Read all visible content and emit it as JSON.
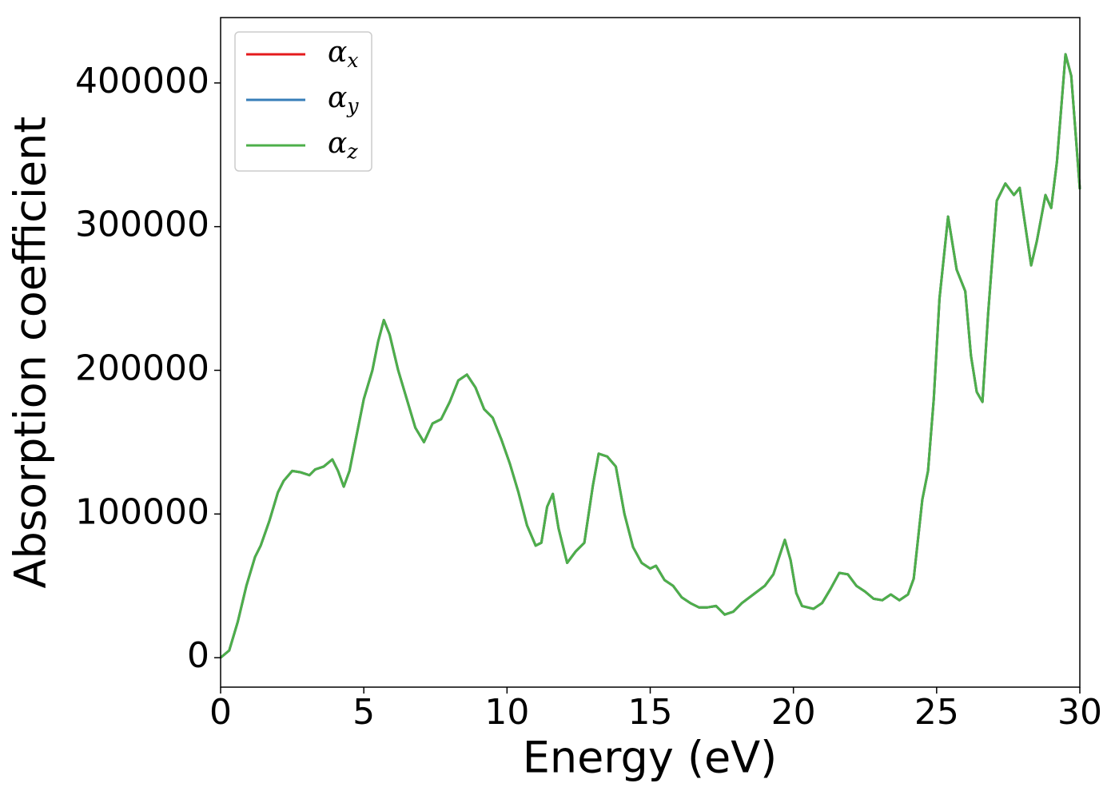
{
  "chart_data": {
    "type": "line",
    "xlabel": "Energy (eV)",
    "ylabel": "Absorption coefficient",
    "x": [
      0,
      0.3,
      0.6,
      0.9,
      1.2,
      1.4,
      1.7,
      2.0,
      2.2,
      2.5,
      2.8,
      3.1,
      3.3,
      3.6,
      3.9,
      4.1,
      4.3,
      4.5,
      4.8,
      5.0,
      5.3,
      5.5,
      5.7,
      5.9,
      6.2,
      6.5,
      6.8,
      7.1,
      7.4,
      7.7,
      8.0,
      8.3,
      8.6,
      8.9,
      9.2,
      9.5,
      9.8,
      10.1,
      10.4,
      10.7,
      11.0,
      11.2,
      11.4,
      11.6,
      11.8,
      12.1,
      12.4,
      12.7,
      13.0,
      13.2,
      13.5,
      13.8,
      14.1,
      14.4,
      14.7,
      15.0,
      15.2,
      15.5,
      15.8,
      16.1,
      16.4,
      16.7,
      17.0,
      17.3,
      17.6,
      17.9,
      18.2,
      18.6,
      19.0,
      19.3,
      19.5,
      19.7,
      19.9,
      20.1,
      20.3,
      20.7,
      21.0,
      21.3,
      21.6,
      21.9,
      22.2,
      22.5,
      22.8,
      23.1,
      23.4,
      23.7,
      24.0,
      24.2,
      24.5,
      24.7,
      24.9,
      25.1,
      25.4,
      25.7,
      26.0,
      26.2,
      26.4,
      26.6,
      26.8,
      27.1,
      27.4,
      27.7,
      27.9,
      28.1,
      28.3,
      28.5,
      28.8,
      29.0,
      29.2,
      29.5,
      29.7,
      30.0
    ],
    "series": [
      {
        "name": "αx",
        "color": "#e41a1c",
        "values": [
          0,
          5000,
          25000,
          50000,
          70000,
          78000,
          95000,
          115000,
          123000,
          130000,
          129000,
          127000,
          131000,
          133000,
          138000,
          130000,
          119000,
          130000,
          160000,
          180000,
          200000,
          220000,
          235000,
          225000,
          200000,
          180000,
          160000,
          150000,
          163000,
          166000,
          178000,
          193000,
          197000,
          188000,
          173000,
          167000,
          152000,
          135000,
          115000,
          92000,
          78000,
          80000,
          105000,
          114000,
          90000,
          66000,
          74000,
          80000,
          120000,
          142000,
          140000,
          133000,
          100000,
          77000,
          66000,
          62000,
          64000,
          54000,
          50000,
          42000,
          38000,
          35000,
          35000,
          36000,
          30000,
          32000,
          38000,
          44000,
          50000,
          58000,
          70000,
          82000,
          68000,
          45000,
          36000,
          34000,
          38000,
          48000,
          59000,
          58000,
          50000,
          46000,
          41000,
          40000,
          44000,
          40000,
          44000,
          55000,
          110000,
          130000,
          180000,
          250000,
          307000,
          270000,
          255000,
          210000,
          185000,
          178000,
          240000,
          318000,
          330000,
          322000,
          327000,
          300000,
          273000,
          290000,
          322000,
          313000,
          345000,
          420000,
          405000,
          326000
        ]
      },
      {
        "name": "αy",
        "color": "#377eb8",
        "values": [
          0,
          5000,
          25000,
          50000,
          70000,
          78000,
          95000,
          115000,
          123000,
          130000,
          129000,
          127000,
          131000,
          133000,
          138000,
          130000,
          119000,
          130000,
          160000,
          180000,
          200000,
          220000,
          235000,
          225000,
          200000,
          180000,
          160000,
          150000,
          163000,
          166000,
          178000,
          193000,
          197000,
          188000,
          173000,
          167000,
          152000,
          135000,
          115000,
          92000,
          78000,
          80000,
          105000,
          114000,
          90000,
          66000,
          74000,
          80000,
          120000,
          142000,
          140000,
          133000,
          100000,
          77000,
          66000,
          62000,
          64000,
          54000,
          50000,
          42000,
          38000,
          35000,
          35000,
          36000,
          30000,
          32000,
          38000,
          44000,
          50000,
          58000,
          70000,
          82000,
          68000,
          45000,
          36000,
          34000,
          38000,
          48000,
          59000,
          58000,
          50000,
          46000,
          41000,
          40000,
          44000,
          40000,
          44000,
          55000,
          110000,
          130000,
          180000,
          250000,
          307000,
          270000,
          255000,
          210000,
          185000,
          178000,
          240000,
          318000,
          330000,
          322000,
          327000,
          300000,
          273000,
          290000,
          322000,
          313000,
          345000,
          420000,
          405000,
          326000
        ]
      },
      {
        "name": "αz",
        "color": "#4daf4a",
        "values": [
          0,
          5000,
          25000,
          50000,
          70000,
          78000,
          95000,
          115000,
          123000,
          130000,
          129000,
          127000,
          131000,
          133000,
          138000,
          130000,
          119000,
          130000,
          160000,
          180000,
          200000,
          220000,
          235000,
          225000,
          200000,
          180000,
          160000,
          150000,
          163000,
          166000,
          178000,
          193000,
          197000,
          188000,
          173000,
          167000,
          152000,
          135000,
          115000,
          92000,
          78000,
          80000,
          105000,
          114000,
          90000,
          66000,
          74000,
          80000,
          120000,
          142000,
          140000,
          133000,
          100000,
          77000,
          66000,
          62000,
          64000,
          54000,
          50000,
          42000,
          38000,
          35000,
          35000,
          36000,
          30000,
          32000,
          38000,
          44000,
          50000,
          58000,
          70000,
          82000,
          68000,
          45000,
          36000,
          34000,
          38000,
          48000,
          59000,
          58000,
          50000,
          46000,
          41000,
          40000,
          44000,
          40000,
          44000,
          55000,
          110000,
          130000,
          180000,
          250000,
          307000,
          270000,
          255000,
          210000,
          185000,
          178000,
          240000,
          318000,
          330000,
          322000,
          327000,
          300000,
          273000,
          290000,
          322000,
          313000,
          345000,
          420000,
          405000,
          326000
        ]
      }
    ],
    "xlim": [
      0,
      30
    ],
    "xticks": [
      0,
      5,
      10,
      15,
      20,
      25,
      30
    ],
    "ylim": [
      -20500,
      445500
    ],
    "yticks": [
      0,
      100000,
      200000,
      300000,
      400000
    ],
    "grid": false,
    "legend": "upper left"
  }
}
